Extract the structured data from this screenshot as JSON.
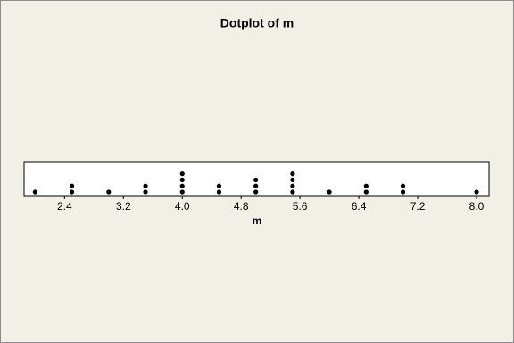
{
  "chart_data": {
    "type": "dotplot",
    "title": "Dotplot of m",
    "x_label": "m",
    "x": [
      2.0,
      2.5,
      3.0,
      3.5,
      4.0,
      4.5,
      5.0,
      5.5,
      6.0,
      6.5,
      7.0,
      8.0
    ],
    "values": [
      1,
      2,
      1,
      2,
      4,
      2,
      3,
      4,
      1,
      2,
      2,
      1
    ],
    "color": "#000000",
    "xlim": [
      1.85,
      8.17
    ],
    "xticks": [
      2.4,
      3.2,
      {
        "value": 4,
        "label": "4.0"
      },
      4.8,
      5.6,
      6.4,
      7.2,
      {
        "value": 8,
        "label": "8.0"
      }
    ]
  }
}
